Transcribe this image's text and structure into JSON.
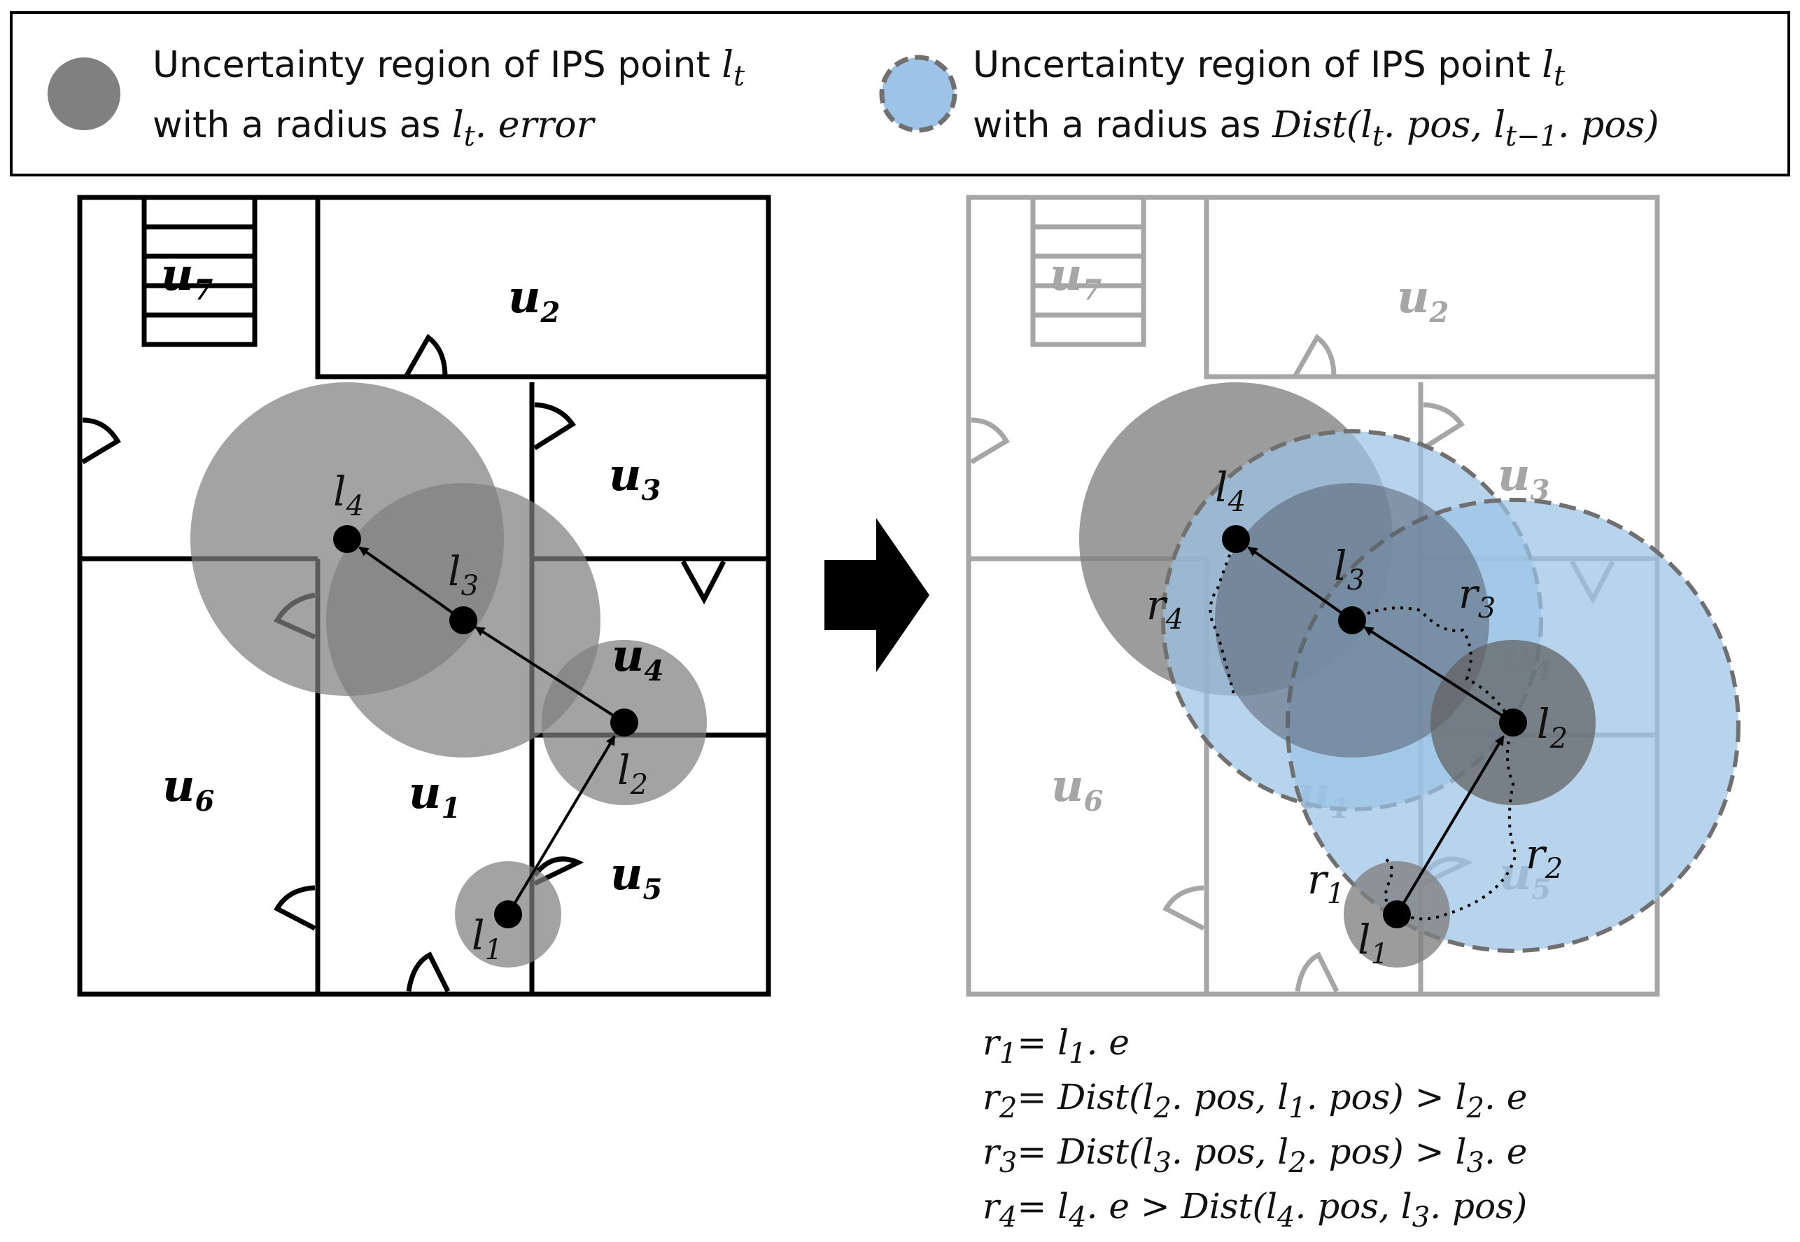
{
  "legend": {
    "gray_line1": "Uncertainty region of IPS point ",
    "gray_line1_var": "l",
    "gray_line1_sub": "t",
    "gray_line2": "with a radius as ",
    "gray_line2_math": "l",
    "gray_line2_math_sub": "t",
    "gray_line2_math_rest": ". error",
    "blue_line1": "Uncertainty region of IPS point ",
    "blue_line1_var": "l",
    "blue_line1_sub": "t",
    "blue_line2": "with a radius as ",
    "blue_line2_math": "Dist(l",
    "blue_line2_sub1": "t",
    "blue_line2_mid": ". pos, l",
    "blue_line2_sub2": "t−1",
    "blue_line2_end": ". pos)"
  },
  "rooms": {
    "u1": {
      "base": "u",
      "sub": "1"
    },
    "u2": {
      "base": "u",
      "sub": "2"
    },
    "u3": {
      "base": "u",
      "sub": "3"
    },
    "u4": {
      "base": "u",
      "sub": "4"
    },
    "u5": {
      "base": "u",
      "sub": "5"
    },
    "u6": {
      "base": "u",
      "sub": "6"
    },
    "u7": {
      "base": "u",
      "sub": "7"
    }
  },
  "points": {
    "l1": {
      "base": "l",
      "sub": "1"
    },
    "l2": {
      "base": "l",
      "sub": "2"
    },
    "l3": {
      "base": "l",
      "sub": "3"
    },
    "l4": {
      "base": "l",
      "sub": "4"
    }
  },
  "radii_labels": {
    "r1": {
      "base": "r",
      "sub": "1"
    },
    "r2": {
      "base": "r",
      "sub": "2"
    },
    "r3": {
      "base": "r",
      "sub": "3"
    },
    "r4": {
      "base": "r",
      "sub": "4"
    }
  },
  "formulas": {
    "f1": {
      "lhs": "r",
      "lhs_sub": "1",
      "body": "=  l",
      "body_sub": "1",
      "tail": ". e"
    },
    "f2": {
      "lhs": "r",
      "lhs_sub": "2",
      "body": "=  Dist(l",
      "s1": "2",
      "m1": ". pos, l",
      "s2": "1",
      "m2": ". pos) > l",
      "s3": "2",
      "tail": ". e"
    },
    "f3": {
      "lhs": "r",
      "lhs_sub": "3",
      "body": "= Dist(l",
      "s1": "3",
      "m1": ". pos, l",
      "s2": "2",
      "m2": ". pos) > l",
      "s3": "3",
      "tail": ". e"
    },
    "f4": {
      "lhs": "r",
      "lhs_sub": "4",
      "body": "= l",
      "s1": "4",
      "m1": ". e >  Dist(l",
      "s2": "4",
      "m2": ". pos, l",
      "s3": "3",
      "tail": ". pos)"
    }
  },
  "colors": {
    "gray_region": "#808080",
    "blue_region": "#9dc3e6",
    "blue_region_edge": "#707070",
    "floorplan_left": "#000000",
    "floorplan_right": "#a6a6a6"
  }
}
